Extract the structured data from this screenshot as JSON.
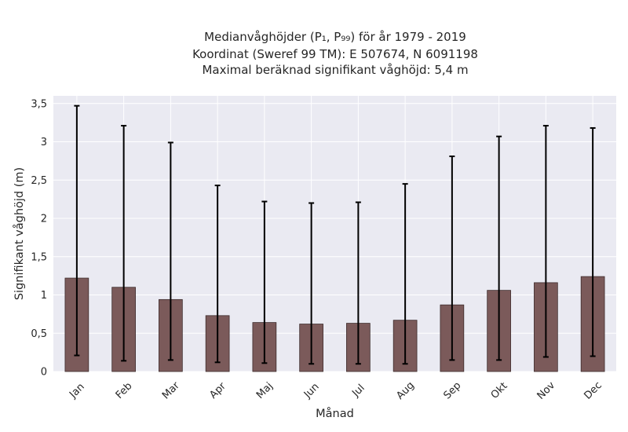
{
  "chart_data": {
    "type": "bar",
    "title_lines": [
      "Medianvåghöjder (P₁, P₉₉) för år 1979 - 2019",
      "Koordinat (Sweref 99 TM): E 507674, N 6091198",
      "Maximal beräknad signifikant våghöjd: 5,4 m"
    ],
    "xlabel": "Månad",
    "ylabel": "Signifikant våghöjd (m)",
    "categories": [
      "Jan",
      "Feb",
      "Mar",
      "Apr",
      "Maj",
      "Jun",
      "Jul",
      "Aug",
      "Sep",
      "Okt",
      "Nov",
      "Dec"
    ],
    "values": [
      1.22,
      1.1,
      0.94,
      0.73,
      0.64,
      0.62,
      0.63,
      0.67,
      0.87,
      1.06,
      1.16,
      1.24
    ],
    "error_low": [
      0.21,
      0.14,
      0.15,
      0.12,
      0.11,
      0.1,
      0.1,
      0.1,
      0.15,
      0.15,
      0.19,
      0.2
    ],
    "error_high": [
      3.47,
      3.21,
      2.99,
      2.43,
      2.22,
      2.2,
      2.21,
      2.45,
      2.81,
      3.07,
      3.21,
      3.18
    ],
    "ylim": [
      0,
      3.6
    ],
    "yticks": [
      0,
      0.5,
      1,
      1.5,
      2,
      2.5,
      3,
      3.5
    ],
    "ytick_labels": [
      "0",
      "0,5",
      "1",
      "1,5",
      "2",
      "2,5",
      "3",
      "3,5"
    ],
    "grid": true,
    "colors": {
      "bar_fill": "#7b5a5a",
      "bar_edge": "#3d2c2c",
      "plot_bg": "#eaeaf2",
      "grid": "#ffffff",
      "errorbar": "#000000"
    }
  }
}
